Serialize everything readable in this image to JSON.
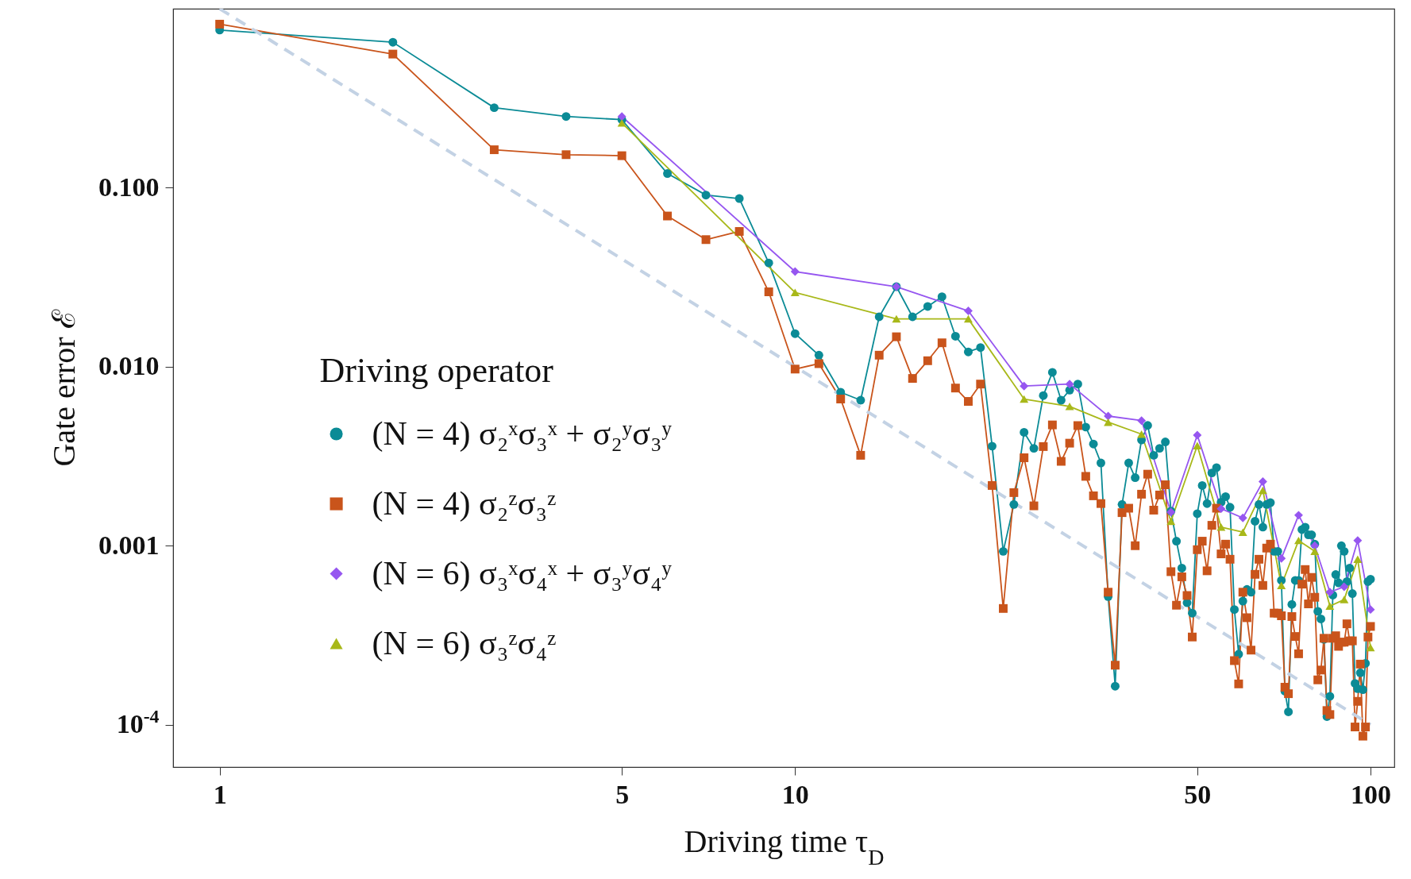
{
  "chart_data": {
    "type": "line",
    "xlabel": "Driving time τ$_{D}$",
    "ylabel": "Gate error ℰ",
    "legend_title": "Driving operator",
    "log": "xy",
    "legend": "bottom left",
    "xlim": [
      0.83,
      110
    ],
    "ylim": [
      5.8e-05,
      1
    ],
    "xticks": [
      1,
      5,
      10,
      50,
      100
    ],
    "yticks": [
      {
        "value": 0.1,
        "label": "0.100"
      },
      {
        "value": 0.01,
        "label": "0.010"
      },
      {
        "value": 0.001,
        "label": "0.001"
      },
      {
        "value": 0.0001,
        "label": "10$^{-4}$"
      }
    ],
    "series": [
      {
        "name": "(N = 4) σ₂ˣσ₃ˣ + σ₂ʸσ₃ʸ",
        "type": "line",
        "marker": "circle",
        "color": "#0b8b96",
        "x": [
          1,
          2,
          3,
          4,
          5,
          6,
          7,
          8,
          9,
          10,
          11,
          12,
          13,
          14,
          15,
          16,
          17,
          18,
          19,
          20,
          21,
          22,
          23,
          24,
          25,
          26,
          27,
          28,
          29,
          30,
          31,
          32,
          33,
          34,
          35,
          36,
          37,
          38,
          39,
          40,
          41,
          42,
          43,
          44,
          45,
          46,
          47,
          48,
          49,
          50,
          51,
          52,
          53,
          54,
          55,
          56,
          57,
          58,
          59,
          60,
          61,
          62,
          63,
          64,
          65,
          66,
          67,
          68,
          69,
          70,
          71,
          72,
          73,
          74,
          75,
          76,
          77,
          78,
          79,
          80,
          81,
          82,
          83,
          84,
          85,
          86,
          87,
          88,
          89,
          90,
          91,
          92,
          93,
          94,
          95,
          96,
          97,
          98,
          99,
          100
        ],
        "values": [
          0.76,
          0.65,
          0.28,
          0.25,
          0.24,
          0.12,
          0.091,
          0.087,
          0.038,
          0.0153,
          0.0116,
          0.0072,
          0.0065,
          0.019,
          0.028,
          0.019,
          0.0217,
          0.0246,
          0.0148,
          0.0121,
          0.0128,
          0.0036,
          0.00093,
          0.0017,
          0.0043,
          0.0035,
          0.0069,
          0.0093,
          0.0065,
          0.0074,
          0.008,
          0.0046,
          0.0037,
          0.0029,
          0.00052,
          0.000164,
          0.0017,
          0.0029,
          0.0024,
          0.0039,
          0.0047,
          0.0032,
          0.0035,
          0.0038,
          0.00156,
          0.00106,
          0.00075,
          0.00048,
          0.00042,
          0.00151,
          0.00217,
          0.00172,
          0.00255,
          0.00273,
          0.00175,
          0.00188,
          0.00164,
          0.00044,
          0.000248,
          0.00049,
          0.00057,
          0.00055,
          0.00137,
          0.0017,
          0.00127,
          0.0017,
          0.00174,
          0.00093,
          0.00093,
          0.00064,
          0.000154,
          0.000118,
          0.00047,
          0.00064,
          0.00064,
          0.00123,
          0.00127,
          0.00115,
          0.00115,
          0.00102,
          0.00043,
          0.00039,
          0.0003,
          0.000111,
          0.000144,
          0.00053,
          0.00069,
          0.00062,
          0.001,
          0.00093,
          0.00063,
          0.00075,
          0.00054,
          0.00017,
          0.000159,
          0.000195,
          0.000157,
          0.00022,
          0.00063,
          0.00065
        ]
      },
      {
        "name": "(N = 4) σ₂ᶻσ₃ᶻ",
        "type": "line",
        "marker": "square",
        "color": "#c9541b",
        "x": [
          1,
          2,
          3,
          4,
          5,
          6,
          7,
          8,
          9,
          10,
          11,
          12,
          13,
          14,
          15,
          16,
          17,
          18,
          19,
          20,
          21,
          22,
          23,
          24,
          25,
          26,
          27,
          28,
          29,
          30,
          31,
          32,
          33,
          34,
          35,
          36,
          37,
          38,
          39,
          40,
          41,
          42,
          43,
          44,
          45,
          46,
          47,
          48,
          49,
          50,
          51,
          52,
          53,
          54,
          55,
          56,
          57,
          58,
          59,
          60,
          61,
          62,
          63,
          64,
          65,
          66,
          67,
          68,
          69,
          70,
          71,
          72,
          73,
          74,
          75,
          76,
          77,
          78,
          79,
          80,
          81,
          82,
          83,
          84,
          85,
          86,
          87,
          88,
          89,
          90,
          91,
          92,
          93,
          94,
          95,
          96,
          97,
          98,
          99,
          100
        ],
        "values": [
          0.82,
          0.558,
          0.163,
          0.153,
          0.151,
          0.0695,
          0.0513,
          0.057,
          0.0262,
          0.0097,
          0.0104,
          0.0066,
          0.0032,
          0.0116,
          0.0147,
          0.0086,
          0.0108,
          0.0136,
          0.0076,
          0.0064,
          0.008,
          0.00217,
          0.000446,
          0.00198,
          0.0031,
          0.00167,
          0.00358,
          0.00473,
          0.00296,
          0.00374,
          0.00469,
          0.00244,
          0.0019,
          0.00172,
          0.00055,
          0.000215,
          0.00153,
          0.00162,
          0.001,
          0.00194,
          0.00251,
          0.00158,
          0.00192,
          0.00219,
          0.000716,
          0.000465,
          0.00067,
          0.000527,
          0.000309,
          0.00095,
          0.00106,
          0.000724,
          0.0013,
          0.00162,
          0.0009,
          0.00102,
          0.00084,
          0.000228,
          0.000169,
          0.00055,
          0.000396,
          0.000261,
          0.000692,
          0.00084,
          0.0006,
          0.00097,
          0.00102,
          0.00042,
          0.00042,
          0.000406,
          0.000162,
          0.000149,
          0.000402,
          0.000311,
          0.000249,
          0.00061,
          0.000736,
          0.000473,
          0.000665,
          0.000515,
          0.000178,
          0.000202,
          0.000304,
          0.00012,
          0.000114,
          0.000304,
          0.000314,
          0.000274,
          0.000289,
          0.000289,
          0.000366,
          0.000294,
          0.000294,
          9.71e-05,
          0.000135,
          0.000218,
          8.63e-05,
          9.71e-05,
          0.000309,
          0.000354
        ]
      },
      {
        "name": "(N = 6) σ₃ˣσ₄ˣ + σ₃ʸσ₄ʸ",
        "type": "line",
        "marker": "diamond",
        "color": "#9656f0",
        "x": [
          5,
          10,
          15,
          20,
          25,
          30,
          35,
          40,
          45,
          50,
          55,
          60,
          65,
          70,
          75,
          80,
          85,
          90,
          95,
          100
        ],
        "values": [
          0.25,
          0.034,
          0.028,
          0.0205,
          0.0078,
          0.008,
          0.0053,
          0.005,
          0.00154,
          0.00415,
          0.00161,
          0.00143,
          0.00228,
          0.00085,
          0.00148,
          0.001,
          0.00055,
          0.00059,
          0.00107,
          0.00044
        ]
      },
      {
        "name": "(N = 6) σ₃ᶻσ₄ᶻ",
        "type": "line",
        "marker": "triangle",
        "color": "#a8b819",
        "x": [
          5,
          10,
          15,
          20,
          25,
          30,
          35,
          40,
          45,
          50,
          55,
          60,
          65,
          70,
          75,
          80,
          85,
          90,
          95,
          100
        ],
        "values": [
          0.23,
          0.026,
          0.0185,
          0.0185,
          0.0066,
          0.006,
          0.0049,
          0.0042,
          0.00137,
          0.00362,
          0.00127,
          0.00119,
          0.00204,
          0.0006,
          0.00107,
          0.00093,
          0.00046,
          0.0005,
          0.00084,
          0.00027
        ]
      },
      {
        "type": "line",
        "marker": "none",
        "line_style": "dashed",
        "color": "#c3d2e4",
        "x": [
          1,
          100
        ],
        "values": [
          1,
          0.0001
        ]
      }
    ]
  }
}
